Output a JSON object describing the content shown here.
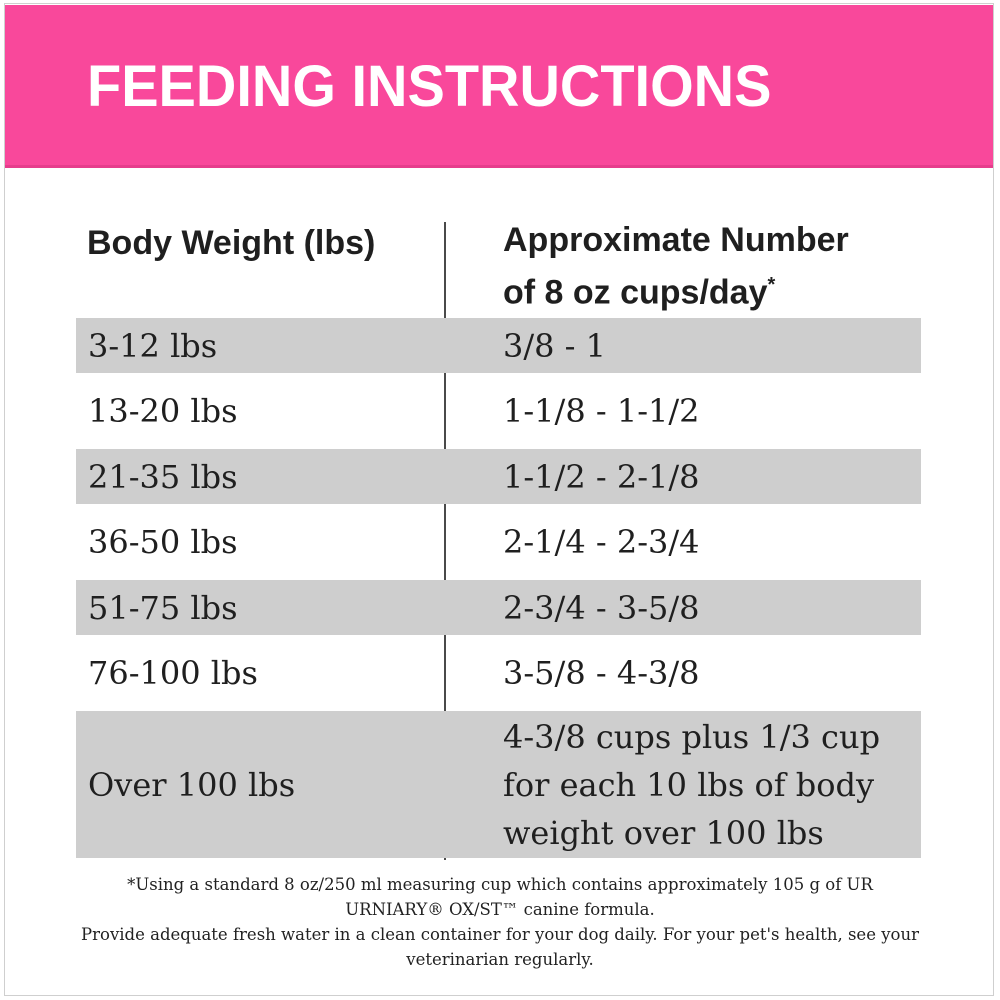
{
  "colors": {
    "banner_bg": "#F9489B",
    "banner_text": "#FFFFFF",
    "shaded_row": "#CECECE",
    "divider": "#4A4A4A"
  },
  "header": {
    "title": "FEEDING INSTRUCTIONS"
  },
  "table": {
    "col1_header": "Body Weight (lbs)",
    "col2_header_line1": "Approximate Number",
    "col2_header_line2": "of 8 oz cups/day",
    "col2_header_footnote_mark": "*",
    "rows": [
      {
        "weight": "3-12 lbs",
        "cups": "3/8 - 1",
        "shaded": true
      },
      {
        "weight": "13-20 lbs",
        "cups": "1-1/8 - 1-1/2",
        "shaded": false
      },
      {
        "weight": "21-35 lbs",
        "cups": "1-1/2 - 2-1/8",
        "shaded": true
      },
      {
        "weight": "36-50 lbs",
        "cups": "2-1/4 - 2-3/4",
        "shaded": false
      },
      {
        "weight": "51-75 lbs",
        "cups": "2-3/4 - 3-5/8",
        "shaded": true
      },
      {
        "weight": "76-100 lbs",
        "cups": "3-5/8 - 4-3/8",
        "shaded": false
      },
      {
        "weight": "Over 100 lbs",
        "cups": "4-3/8 cups plus 1/3 cup for each 10 lbs of body weight over 100 lbs",
        "shaded": true,
        "tall": true
      }
    ]
  },
  "footnote": {
    "line1": "*Using a standard 8 oz/250 ml measuring cup which contains approximately 105 g of UR URNIARY® OX/ST™ canine formula.",
    "line2": "Provide adequate fresh water in a clean container for your dog daily. For your pet's health, see your veterinarian regularly."
  }
}
